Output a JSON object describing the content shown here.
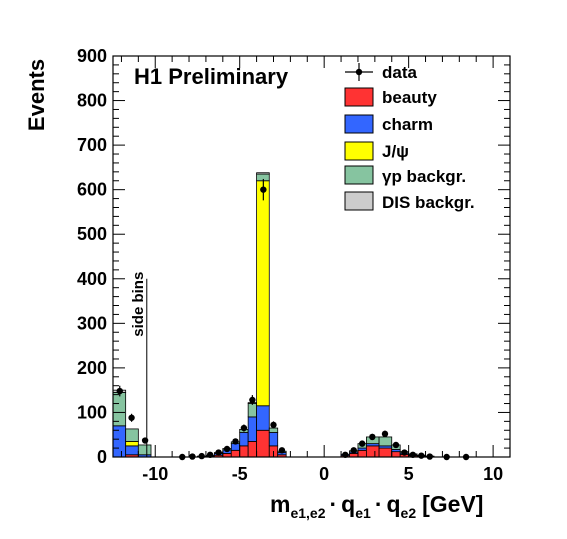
{
  "chart_data": {
    "type": "bar",
    "stacked": true,
    "title": "H1 Preliminary",
    "xlabel_main": "m",
    "xlabel_sub1": "e1,e2",
    "xlabel_dot1": "·",
    "xlabel_q1": "q",
    "xlabel_sub2": "e1",
    "xlabel_dot2": "·",
    "xlabel_q2": "q",
    "xlabel_sub3": "e2",
    "xlabel_unit": "[GeV]",
    "ylabel": "Events",
    "xlim": [
      -12.5,
      11
    ],
    "ylim": [
      0,
      900
    ],
    "x_ticks": [
      -10,
      -5,
      0,
      5,
      10
    ],
    "y_ticks": [
      0,
      100,
      200,
      300,
      400,
      500,
      600,
      700,
      800,
      900
    ],
    "annotation": {
      "text": "side bins",
      "x": -10.5
    },
    "legend": {
      "position": "top-right",
      "data_label": "data",
      "entries": [
        {
          "key": "beauty",
          "label": "beauty",
          "color": "#ff3333"
        },
        {
          "key": "charm",
          "label": "charm",
          "color": "#3366ff"
        },
        {
          "key": "jpsi",
          "label": "J/ψ",
          "color": "#ffff00"
        },
        {
          "key": "gp",
          "label": "γp backgr.",
          "color": "#86c4a0"
        },
        {
          "key": "dis",
          "label": "DIS backgr.",
          "color": "#cccccc"
        }
      ]
    },
    "series_order": [
      "beauty",
      "charm",
      "jpsi",
      "gp",
      "dis"
    ],
    "bins": [
      {
        "x0": -12.5,
        "x1": -11.75,
        "beauty": 0,
        "charm": 70,
        "jpsi": 0,
        "gp": 75,
        "dis": 5
      },
      {
        "x0": -11.75,
        "x1": -11.0,
        "beauty": 5,
        "charm": 20,
        "jpsi": 10,
        "gp": 28,
        "dis": 0
      },
      {
        "x0": -11.0,
        "x1": -10.25,
        "beauty": 0,
        "charm": 5,
        "jpsi": 0,
        "gp": 22,
        "dis": 0
      },
      {
        "x0": -7.5,
        "x1": -7.0,
        "beauty": 1,
        "charm": 1,
        "jpsi": 0,
        "gp": 0,
        "dis": 0
      },
      {
        "x0": -7.0,
        "x1": -6.5,
        "beauty": 2,
        "charm": 2,
        "jpsi": 0,
        "gp": 0,
        "dis": 0
      },
      {
        "x0": -6.5,
        "x1": -6.0,
        "beauty": 4,
        "charm": 4,
        "jpsi": 0,
        "gp": 2,
        "dis": 0
      },
      {
        "x0": -6.0,
        "x1": -5.5,
        "beauty": 8,
        "charm": 8,
        "jpsi": 0,
        "gp": 3,
        "dis": 0
      },
      {
        "x0": -5.5,
        "x1": -5.0,
        "beauty": 15,
        "charm": 15,
        "jpsi": 0,
        "gp": 4,
        "dis": 0
      },
      {
        "x0": -5.0,
        "x1": -4.5,
        "beauty": 25,
        "charm": 30,
        "jpsi": 0,
        "gp": 7,
        "dis": 0
      },
      {
        "x0": -4.5,
        "x1": -4.0,
        "beauty": 35,
        "charm": 55,
        "jpsi": 0,
        "gp": 30,
        "dis": 2
      },
      {
        "x0": -4.0,
        "x1": -3.25,
        "beauty": 60,
        "charm": 55,
        "jpsi": 505,
        "gp": 15,
        "dis": 3
      },
      {
        "x0": -3.25,
        "x1": -2.75,
        "beauty": 25,
        "charm": 30,
        "jpsi": 0,
        "gp": 10,
        "dis": 0
      },
      {
        "x0": -2.75,
        "x1": -2.25,
        "beauty": 5,
        "charm": 5,
        "jpsi": 0,
        "gp": 3,
        "dis": 0
      },
      {
        "x0": 1.0,
        "x1": 1.5,
        "beauty": 3,
        "charm": 3,
        "jpsi": 0,
        "gp": 0,
        "dis": 0
      },
      {
        "x0": 1.5,
        "x1": 2.0,
        "beauty": 8,
        "charm": 3,
        "jpsi": 0,
        "gp": 3,
        "dis": 0
      },
      {
        "x0": 2.0,
        "x1": 2.5,
        "beauty": 15,
        "charm": 5,
        "jpsi": 0,
        "gp": 10,
        "dis": 0
      },
      {
        "x0": 2.5,
        "x1": 3.25,
        "beauty": 25,
        "charm": 5,
        "jpsi": 0,
        "gp": 15,
        "dis": 0
      },
      {
        "x0": 3.25,
        "x1": 4.0,
        "beauty": 20,
        "charm": 5,
        "jpsi": 0,
        "gp": 20,
        "dis": 0
      },
      {
        "x0": 4.0,
        "x1": 4.5,
        "beauty": 12,
        "charm": 5,
        "jpsi": 0,
        "gp": 10,
        "dis": 0
      },
      {
        "x0": 4.5,
        "x1": 5.0,
        "beauty": 6,
        "charm": 3,
        "jpsi": 0,
        "gp": 3,
        "dis": 0
      },
      {
        "x0": 5.0,
        "x1": 5.5,
        "beauty": 3,
        "charm": 2,
        "jpsi": 0,
        "gp": 2,
        "dis": 0
      },
      {
        "x0": 5.5,
        "x1": 6.0,
        "beauty": 2,
        "charm": 1,
        "jpsi": 0,
        "gp": 1,
        "dis": 0
      },
      {
        "x0": 6.0,
        "x1": 6.5,
        "beauty": 1,
        "charm": 1,
        "jpsi": 0,
        "gp": 0,
        "dis": 0
      }
    ],
    "data_points": [
      {
        "x": -12.1,
        "y": 148,
        "err": 12
      },
      {
        "x": -11.4,
        "y": 88,
        "err": 9
      },
      {
        "x": -10.6,
        "y": 37,
        "err": 6
      },
      {
        "x": -8.4,
        "y": 0,
        "err": 0
      },
      {
        "x": -7.8,
        "y": 1,
        "err": 1
      },
      {
        "x": -7.25,
        "y": 2,
        "err": 1
      },
      {
        "x": -6.75,
        "y": 5,
        "err": 2
      },
      {
        "x": -6.25,
        "y": 10,
        "err": 3
      },
      {
        "x": -5.75,
        "y": 18,
        "err": 4
      },
      {
        "x": -5.25,
        "y": 35,
        "err": 6
      },
      {
        "x": -4.75,
        "y": 65,
        "err": 8
      },
      {
        "x": -4.25,
        "y": 128,
        "err": 11
      },
      {
        "x": -3.6,
        "y": 600,
        "err": 24
      },
      {
        "x": -3.0,
        "y": 72,
        "err": 8
      },
      {
        "x": -2.5,
        "y": 15,
        "err": 4
      },
      {
        "x": 1.25,
        "y": 5,
        "err": 2
      },
      {
        "x": 1.75,
        "y": 15,
        "err": 4
      },
      {
        "x": 2.25,
        "y": 30,
        "err": 5
      },
      {
        "x": 2.85,
        "y": 45,
        "err": 7
      },
      {
        "x": 3.6,
        "y": 52,
        "err": 7
      },
      {
        "x": 4.25,
        "y": 27,
        "err": 5
      },
      {
        "x": 4.75,
        "y": 10,
        "err": 3
      },
      {
        "x": 5.25,
        "y": 5,
        "err": 2
      },
      {
        "x": 5.75,
        "y": 3,
        "err": 2
      },
      {
        "x": 6.25,
        "y": 1,
        "err": 1
      },
      {
        "x": 7.25,
        "y": 0,
        "err": 0
      },
      {
        "x": 8.4,
        "y": 0,
        "err": 0
      }
    ]
  }
}
